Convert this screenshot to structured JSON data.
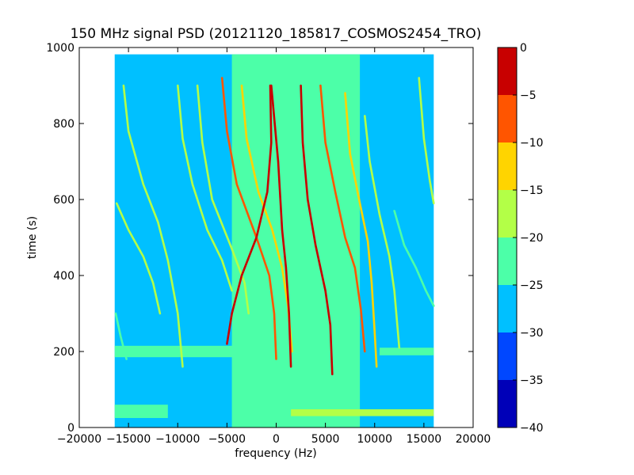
{
  "chart_data": {
    "type": "heatmap",
    "title": "150 MHz signal PSD (20121120_185817_COSMOS2454_TRO)",
    "xlabel": "frequency (Hz)",
    "ylabel": "time (s)",
    "xlim": [
      -20000,
      20000
    ],
    "ylim": [
      0,
      1000
    ],
    "x_ticks": [
      "−20000",
      "−15000",
      "−10000",
      "−5000",
      "0",
      "5000",
      "10000",
      "15000",
      "20000"
    ],
    "y_ticks": [
      "0",
      "200",
      "400",
      "600",
      "800",
      "1000"
    ],
    "data_extent": {
      "x": [
        -16400,
        16000
      ],
      "y": [
        0,
        982
      ]
    },
    "grid": false,
    "colorbar": {
      "range": [
        -40,
        0
      ],
      "ticks": [
        "−40",
        "−35",
        "−30",
        "−25",
        "−20",
        "−15",
        "−10",
        "−5",
        "0"
      ],
      "levels": [
        {
          "from": -40,
          "to": -35,
          "color": "#0000b8"
        },
        {
          "from": -35,
          "to": -30,
          "color": "#0047ff"
        },
        {
          "from": -30,
          "to": -25,
          "color": "#00c0ff"
        },
        {
          "from": -25,
          "to": -20,
          "color": "#4cffa8"
        },
        {
          "from": -20,
          "to": -15,
          "color": "#b3ff47"
        },
        {
          "from": -15,
          "to": -10,
          "color": "#ffd400"
        },
        {
          "from": -10,
          "to": -5,
          "color": "#ff5500"
        },
        {
          "from": -5,
          "to": 0,
          "color": "#c80000"
        }
      ]
    },
    "background_level": -27.5,
    "central_band": {
      "x": [
        -4500,
        8500
      ],
      "level": -22.5
    },
    "horizontal_bands": [
      {
        "y": [
          25,
          60
        ],
        "x": [
          -16400,
          -11000
        ],
        "level": -22.5
      },
      {
        "y": [
          30,
          48
        ],
        "x": [
          1500,
          16000
        ],
        "level": -17.5
      },
      {
        "y": [
          185,
          215
        ],
        "x": [
          -3500,
          -16400
        ],
        "level": -22.5
      },
      {
        "y": [
          190,
          210
        ],
        "x": [
          10500,
          16000
        ],
        "level": -22.5
      }
    ],
    "series": [
      {
        "level": -2.5,
        "points": [
          [
            -600,
            900
          ],
          [
            -500,
            750
          ],
          [
            -900,
            620
          ],
          [
            -2000,
            500
          ],
          [
            -3500,
            400
          ],
          [
            -4500,
            300
          ],
          [
            -5000,
            220
          ]
        ]
      },
      {
        "level": -2.5,
        "points": [
          [
            -500,
            900
          ],
          [
            200,
            700
          ],
          [
            600,
            520
          ],
          [
            1000,
            420
          ],
          [
            1300,
            300
          ],
          [
            1500,
            160
          ]
        ]
      },
      {
        "level": -2.5,
        "points": [
          [
            2500,
            900
          ],
          [
            2700,
            750
          ],
          [
            3200,
            600
          ],
          [
            4000,
            480
          ],
          [
            5000,
            360
          ],
          [
            5500,
            270
          ],
          [
            5700,
            140
          ]
        ]
      },
      {
        "level": -7.5,
        "points": [
          [
            -5500,
            920
          ],
          [
            -5000,
            780
          ],
          [
            -4000,
            640
          ],
          [
            -2000,
            500
          ],
          [
            -700,
            400
          ],
          [
            -200,
            300
          ],
          [
            0,
            180
          ]
        ]
      },
      {
        "level": -7.5,
        "points": [
          [
            4500,
            900
          ],
          [
            5000,
            750
          ],
          [
            6000,
            620
          ],
          [
            7000,
            500
          ],
          [
            8000,
            420
          ],
          [
            8600,
            310
          ],
          [
            9000,
            200
          ]
        ]
      },
      {
        "level": -12.5,
        "points": [
          [
            -3500,
            900
          ],
          [
            -3000,
            760
          ],
          [
            -1800,
            620
          ],
          [
            -400,
            520
          ],
          [
            600,
            420
          ],
          [
            1200,
            320
          ],
          [
            1600,
            200
          ]
        ]
      },
      {
        "level": -12.5,
        "points": [
          [
            7000,
            880
          ],
          [
            7500,
            720
          ],
          [
            8500,
            590
          ],
          [
            9300,
            490
          ],
          [
            9700,
            380
          ],
          [
            10000,
            250
          ],
          [
            10200,
            160
          ]
        ]
      },
      {
        "level": -17.5,
        "points": [
          [
            -8000,
            900
          ],
          [
            -7500,
            750
          ],
          [
            -6500,
            600
          ],
          [
            -4500,
            470
          ],
          [
            -3200,
            380
          ],
          [
            -2800,
            300
          ]
        ]
      },
      {
        "level": -17.5,
        "points": [
          [
            9000,
            820
          ],
          [
            9500,
            700
          ],
          [
            10500,
            560
          ],
          [
            11500,
            450
          ],
          [
            12000,
            360
          ],
          [
            12500,
            210
          ]
        ]
      },
      {
        "level": -17.5,
        "points": [
          [
            -15500,
            900
          ],
          [
            -15000,
            780
          ],
          [
            -13500,
            640
          ],
          [
            -12000,
            540
          ],
          [
            -11000,
            440
          ],
          [
            -10000,
            300
          ],
          [
            -9500,
            160
          ]
        ]
      },
      {
        "level": -17.5,
        "points": [
          [
            -10000,
            900
          ],
          [
            -9500,
            760
          ],
          [
            -8500,
            640
          ],
          [
            -7000,
            520
          ],
          [
            -5500,
            440
          ],
          [
            -4500,
            360
          ]
        ]
      },
      {
        "level": -17.5,
        "points": [
          [
            -16200,
            590
          ],
          [
            -15000,
            520
          ],
          [
            -13500,
            450
          ],
          [
            -12500,
            380
          ],
          [
            -11800,
            300
          ]
        ]
      },
      {
        "level": -17.5,
        "points": [
          [
            14500,
            920
          ],
          [
            15000,
            760
          ],
          [
            15600,
            650
          ],
          [
            16000,
            590
          ]
        ]
      },
      {
        "level": -22.5,
        "points": [
          [
            -16300,
            300
          ],
          [
            -15800,
            240
          ],
          [
            -15200,
            180
          ]
        ]
      },
      {
        "level": -22.5,
        "points": [
          [
            12000,
            570
          ],
          [
            13000,
            480
          ],
          [
            14200,
            420
          ],
          [
            15200,
            360
          ],
          [
            16000,
            320
          ]
        ]
      }
    ]
  }
}
